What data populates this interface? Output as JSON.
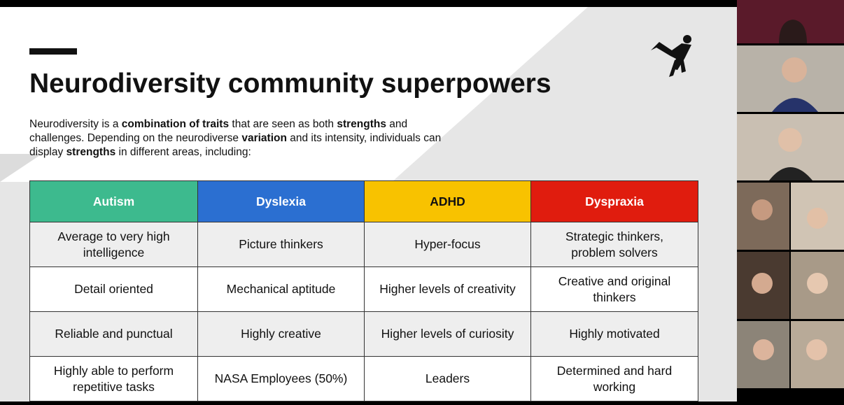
{
  "slide": {
    "title": "Neurodiversity community superpowers",
    "intro": [
      {
        "text": "Neurodiversity is a ",
        "bold": false
      },
      {
        "text": "combination of traits",
        "bold": true
      },
      {
        "text": " that are seen as both ",
        "bold": false
      },
      {
        "text": "strengths",
        "bold": true
      },
      {
        "text": " and challenges. Depending on the neurodiverse ",
        "bold": false
      },
      {
        "text": "variation",
        "bold": true
      },
      {
        "text": " and its intensity, individuals can display ",
        "bold": false
      },
      {
        "text": "strengths",
        "bold": true
      },
      {
        "text": " in different areas, including:",
        "bold": false
      }
    ],
    "table": {
      "headers": [
        {
          "text": "Autism",
          "color": "#3dba8e",
          "text_color": "#ffffff"
        },
        {
          "text": "Dyslexia",
          "color": "#2b6fd1",
          "text_color": "#ffffff"
        },
        {
          "text": "ADHD",
          "color": "#f8c200",
          "text_color": "#111111"
        },
        {
          "text": "Dyspraxia",
          "color": "#e01c0e",
          "text_color": "#ffffff"
        }
      ],
      "rows": [
        [
          "Average to very high intelligence",
          "Picture thinkers",
          "Hyper-focus",
          "Strategic thinkers, problem solvers"
        ],
        [
          "Detail oriented",
          "Mechanical aptitude",
          "Higher levels of creativity",
          "Creative and original thinkers"
        ],
        [
          "Reliable and punctual",
          "Highly creative",
          "Higher levels of curiosity",
          "Highly motivated"
        ],
        [
          "Highly able to perform repetitive tasks",
          "NASA Employees (50%)",
          "Leaders",
          "Determined and hard working"
        ]
      ]
    }
  }
}
